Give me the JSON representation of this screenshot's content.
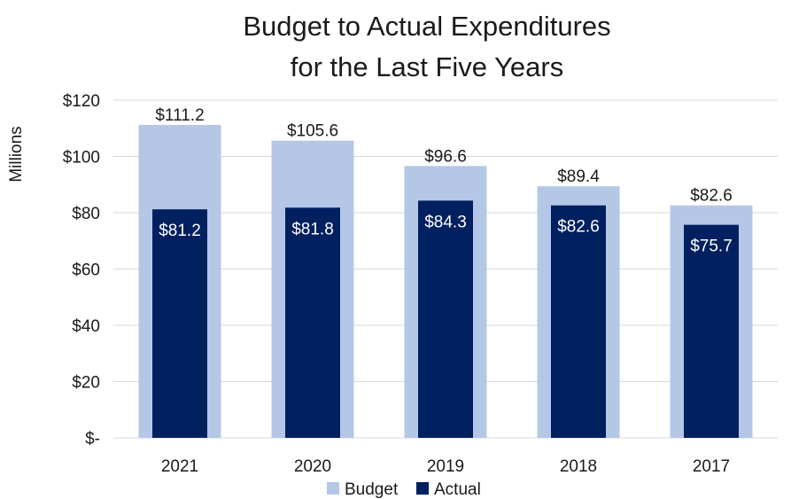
{
  "chart_data": {
    "type": "bar",
    "title_lines": [
      "Budget to Actual  Expenditures",
      "for the Last Five Years"
    ],
    "ylabel": "Millions",
    "categories": [
      "2021",
      "2020",
      "2019",
      "2018",
      "2017"
    ],
    "series": [
      {
        "name": "Budget",
        "values": [
          111.2,
          105.6,
          96.6,
          89.4,
          82.6
        ],
        "labels": [
          "$111.2",
          "$105.6",
          "$96.6",
          "$89.4",
          "$82.6"
        ],
        "color": "#b4c7e7"
      },
      {
        "name": "Actual",
        "values": [
          81.2,
          81.8,
          84.3,
          82.6,
          75.7
        ],
        "labels": [
          "$81.2",
          "$81.8",
          "$84.3",
          "$82.6",
          "$75.7"
        ],
        "color": "#002060"
      }
    ],
    "ylim": [
      0,
      120
    ],
    "yticks": [
      0,
      20,
      40,
      60,
      80,
      100,
      120
    ],
    "ytick_labels": [
      "$-",
      "$20",
      "$40",
      "$60",
      "$80",
      "$100",
      "$120"
    ],
    "grid": true,
    "legend": "bottom"
  }
}
